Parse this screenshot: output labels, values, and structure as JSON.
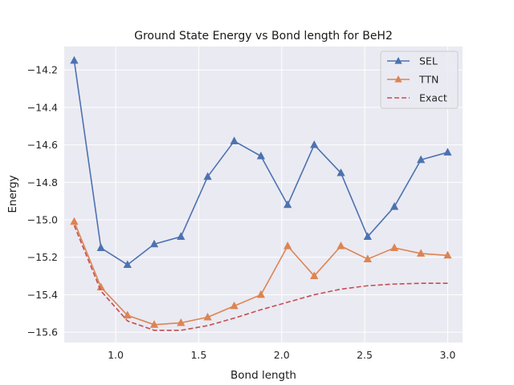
{
  "chart_data": {
    "type": "line",
    "title": "Ground State Energy vs Bond length for BeH2",
    "xlabel": "Bond length",
    "ylabel": "Energy",
    "xlim": [
      0.69,
      3.09
    ],
    "ylim": [
      -15.655,
      -14.075
    ],
    "xticks": [
      1.0,
      1.5,
      2.0,
      2.5,
      3.0
    ],
    "xtick_labels": [
      "1.0",
      "1.5",
      "2.0",
      "2.5",
      "3.0"
    ],
    "yticks": [
      -15.6,
      -15.4,
      -15.2,
      -15.0,
      -14.8,
      -14.6,
      -14.4,
      -14.2
    ],
    "ytick_labels": [
      "−15.6",
      "−15.4",
      "−15.2",
      "−15.0",
      "−14.8",
      "−14.6",
      "−14.4",
      "−14.2"
    ],
    "grid": true,
    "legend_position": "top-right",
    "x": [
      0.75,
      0.911,
      1.071,
      1.232,
      1.393,
      1.554,
      1.714,
      1.875,
      2.036,
      2.196,
      2.357,
      2.518,
      2.679,
      2.839,
      3.0
    ],
    "series": [
      {
        "name": "SEL",
        "color": "#4c72b0",
        "marker": "triangle",
        "style": "solid",
        "values": [
          -14.15,
          -15.15,
          -15.24,
          -15.13,
          -15.09,
          -14.77,
          -14.58,
          -14.66,
          -14.92,
          -14.6,
          -14.75,
          -15.09,
          -14.93,
          -14.68,
          -14.64
        ]
      },
      {
        "name": "TTN",
        "color": "#dd8452",
        "marker": "triangle",
        "style": "solid",
        "values": [
          -15.01,
          -15.36,
          -15.51,
          -15.56,
          -15.55,
          -15.52,
          -15.46,
          -15.4,
          -15.14,
          -15.3,
          -15.14,
          -15.21,
          -15.15,
          -15.18,
          -15.19
        ]
      },
      {
        "name": "Exact",
        "color": "#c44e52",
        "marker": "none",
        "style": "dashed",
        "values": [
          -15.03,
          -15.38,
          -15.54,
          -15.59,
          -15.59,
          -15.565,
          -15.525,
          -15.48,
          -15.44,
          -15.4,
          -15.37,
          -15.352,
          -15.343,
          -15.339,
          -15.339
        ]
      }
    ]
  }
}
